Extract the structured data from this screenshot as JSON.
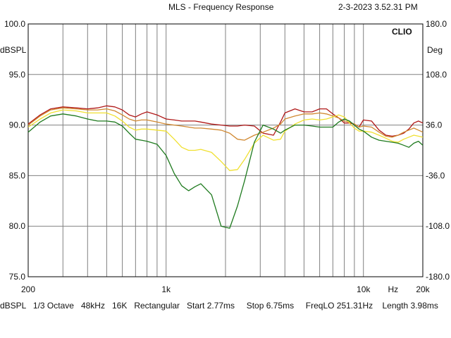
{
  "header": {
    "title": "MLS - Frequency Response",
    "timestamp": "2-3-2023 3.52.31 PM"
  },
  "footer": {
    "status": "dBSPL   1/3 Octave   48kHz   16K   Rectangular   Start 2.77ms     Stop 6.75ms     FreqLO 251.31Hz    Length 3.98ms"
  },
  "chart_data": {
    "type": "line",
    "title": "MLS - Frequency Response",
    "brand_label": "CLIO",
    "xlabel": "Hz",
    "ylabel": "dBSPL",
    "ylabel_right": "Deg",
    "x_scale": "log",
    "xlim": [
      200,
      20000
    ],
    "ylim": [
      75,
      100
    ],
    "ylim_right": [
      -180,
      180
    ],
    "x_ticks": [
      {
        "value": 200,
        "label": "200"
      },
      {
        "value": 1000,
        "label": "1k"
      },
      {
        "value": 10000,
        "label": "10k"
      },
      {
        "value": 20000,
        "label": "20k"
      }
    ],
    "x_unit_tick": {
      "value": 14142,
      "label": "Hz"
    },
    "y_ticks": [
      "75.0",
      "80.0",
      "85.0",
      "90.0",
      "95.0",
      "100.0"
    ],
    "y_ticks_right": [
      "-180.0",
      "-108.0",
      "-36.0",
      "36.0",
      "108.0",
      "180.0"
    ],
    "grid": true,
    "colors": {
      "background": "#ffffff",
      "grid": "#808080",
      "frame": "#000000"
    },
    "series": [
      {
        "color": "#b01818",
        "x": [
          200,
          230,
          260,
          300,
          350,
          400,
          450,
          500,
          550,
          600,
          650,
          700,
          750,
          800,
          900,
          1000,
          1100,
          1200,
          1300,
          1400,
          1500,
          1700,
          1900,
          2100,
          2300,
          2500,
          2800,
          3100,
          3500,
          3800,
          4000,
          4500,
          5000,
          5500,
          6000,
          6500,
          7000,
          7500,
          8000,
          8500,
          9000,
          9500,
          10000,
          11000,
          12000,
          13000,
          14000,
          15000,
          16000,
          17000,
          18000,
          19000,
          20000
        ],
        "y": [
          90.1,
          91.0,
          91.6,
          91.8,
          91.7,
          91.6,
          91.7,
          91.9,
          91.8,
          91.5,
          91.0,
          90.8,
          91.1,
          91.3,
          91.0,
          90.6,
          90.5,
          90.4,
          90.4,
          90.4,
          90.3,
          90.1,
          90.0,
          89.9,
          89.9,
          90.0,
          89.9,
          89.2,
          89.0,
          90.3,
          91.2,
          91.6,
          91.3,
          91.3,
          91.6,
          91.6,
          91.1,
          90.7,
          90.2,
          90.2,
          90.1,
          89.8,
          90.5,
          90.4,
          89.5,
          89.0,
          88.9,
          89.0,
          89.2,
          89.6,
          90.2,
          90.4,
          90.2
        ]
      },
      {
        "color": "#d08830",
        "x": [
          200,
          230,
          260,
          300,
          350,
          400,
          450,
          500,
          550,
          600,
          650,
          700,
          750,
          800,
          900,
          1000,
          1100,
          1200,
          1300,
          1400,
          1500,
          1700,
          1900,
          2100,
          2300,
          2500,
          2800,
          3100,
          3500,
          3800,
          4000,
          4500,
          5000,
          5500,
          6000,
          6500,
          7000,
          7500,
          8000,
          8500,
          9000,
          9500,
          10000,
          11000,
          12000,
          13000,
          14000,
          15000,
          16000,
          17000,
          18000,
          19000,
          20000
        ],
        "y": [
          90.0,
          90.9,
          91.5,
          91.7,
          91.6,
          91.5,
          91.5,
          91.6,
          91.4,
          91.0,
          90.6,
          90.4,
          90.5,
          90.5,
          90.3,
          90.1,
          90.0,
          89.9,
          89.8,
          89.7,
          89.7,
          89.6,
          89.5,
          89.2,
          88.6,
          88.5,
          89.0,
          89.3,
          89.7,
          90.1,
          90.6,
          90.9,
          91.1,
          91.1,
          91.2,
          91.1,
          90.9,
          90.7,
          90.4,
          90.3,
          90.1,
          89.8,
          89.9,
          89.8,
          89.3,
          88.9,
          88.8,
          89.0,
          89.3,
          89.5,
          89.7,
          89.5,
          89.3
        ]
      },
      {
        "color": "#f0e030",
        "x": [
          200,
          230,
          260,
          300,
          350,
          400,
          450,
          500,
          550,
          600,
          650,
          700,
          750,
          800,
          900,
          1000,
          1100,
          1200,
          1300,
          1400,
          1500,
          1700,
          1900,
          2100,
          2300,
          2500,
          2800,
          3100,
          3500,
          3800,
          4000,
          4500,
          5000,
          5500,
          6000,
          6500,
          7000,
          7500,
          8000,
          8500,
          9000,
          9500,
          10000,
          11000,
          12000,
          13000,
          14000,
          15000,
          16000,
          17000,
          18000,
          19000,
          20000
        ],
        "y": [
          89.8,
          90.6,
          91.2,
          91.5,
          91.4,
          91.2,
          91.2,
          91.2,
          90.9,
          90.4,
          89.8,
          89.5,
          89.6,
          89.6,
          89.5,
          89.4,
          88.6,
          87.8,
          87.5,
          87.5,
          87.6,
          87.3,
          86.4,
          85.5,
          85.6,
          86.6,
          88.2,
          89.0,
          88.5,
          88.6,
          89.4,
          90.1,
          90.5,
          90.6,
          90.5,
          90.6,
          90.8,
          91.0,
          90.8,
          90.2,
          89.7,
          89.4,
          89.4,
          89.3,
          89.0,
          88.7,
          88.4,
          88.3,
          88.6,
          88.8,
          89.0,
          88.9,
          88.8
        ]
      },
      {
        "color": "#1e7a1e",
        "x": [
          200,
          230,
          260,
          300,
          350,
          400,
          450,
          500,
          550,
          600,
          650,
          700,
          750,
          800,
          900,
          1000,
          1100,
          1200,
          1300,
          1400,
          1500,
          1700,
          1900,
          2100,
          2300,
          2500,
          2800,
          3100,
          3500,
          3800,
          4000,
          4500,
          5000,
          5500,
          6000,
          6500,
          7000,
          7500,
          8000,
          8500,
          9000,
          9500,
          10000,
          11000,
          12000,
          13000,
          14000,
          15000,
          16000,
          17000,
          18000,
          19000,
          20000
        ],
        "y": [
          89.3,
          90.3,
          90.9,
          91.1,
          90.9,
          90.6,
          90.4,
          90.4,
          90.3,
          89.9,
          89.2,
          88.6,
          88.5,
          88.4,
          88.1,
          87.0,
          85.2,
          84.0,
          83.5,
          83.9,
          84.2,
          83.1,
          80.0,
          79.8,
          82.0,
          84.5,
          88.3,
          90.0,
          89.6,
          89.2,
          89.5,
          90.0,
          90.0,
          89.9,
          89.8,
          89.8,
          89.8,
          90.3,
          90.6,
          90.4,
          90.0,
          89.6,
          89.4,
          88.8,
          88.5,
          88.4,
          88.3,
          88.2,
          88.0,
          87.8,
          88.2,
          88.4,
          88.0
        ]
      }
    ]
  }
}
